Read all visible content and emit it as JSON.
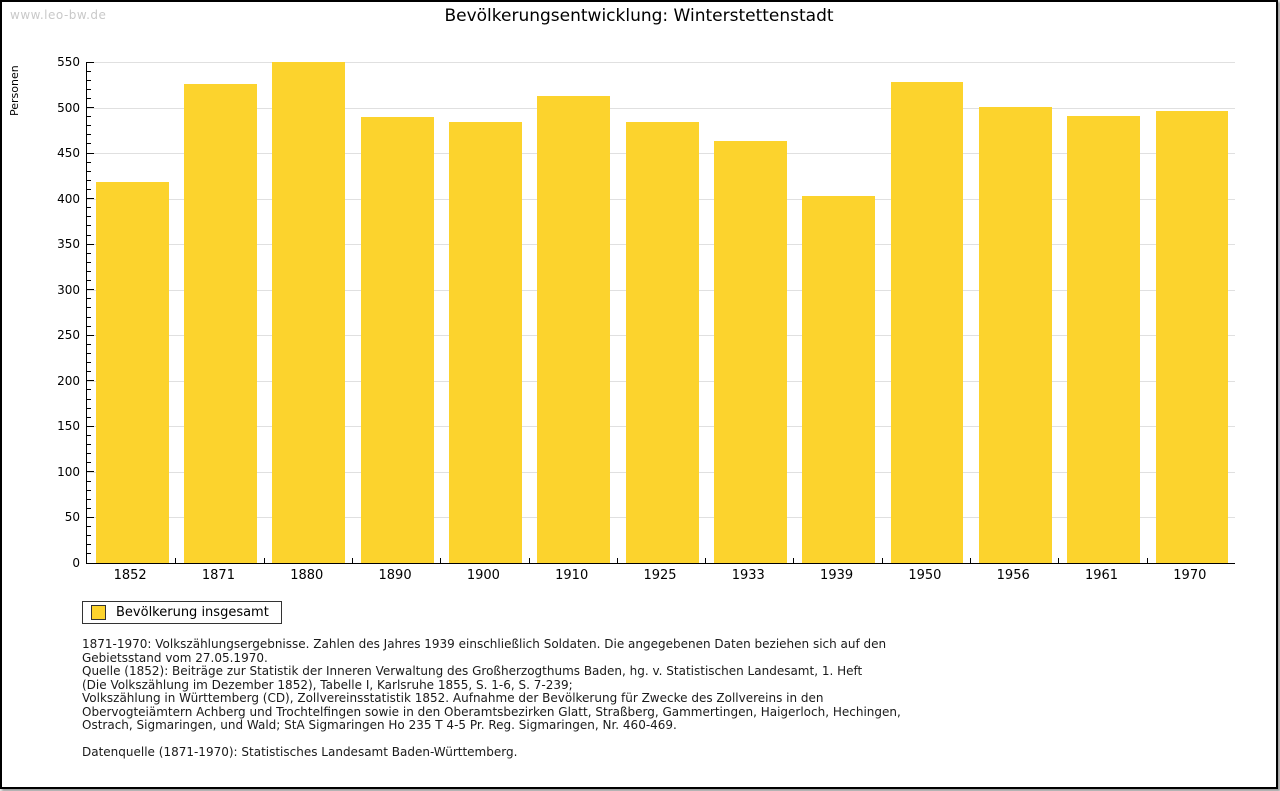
{
  "watermark": "www.leo-bw.de",
  "title": "Bevölkerungsentwicklung: Winterstettenstadt",
  "chart_data": {
    "type": "bar",
    "title": "Bevölkerungsentwicklung: Winterstettenstadt",
    "ylabel": "Personen",
    "xlabel": "",
    "categories": [
      "1852",
      "1871",
      "1880",
      "1890",
      "1900",
      "1910",
      "1925",
      "1933",
      "1939",
      "1950",
      "1956",
      "1961",
      "1970"
    ],
    "series": [
      {
        "name": "Bevölkerung insgesamt",
        "values": [
          418,
          526,
          550,
          490,
          484,
          513,
          484,
          463,
          403,
          528,
          501,
          491,
          496
        ]
      }
    ],
    "ylim": [
      0,
      550
    ],
    "ytick_step": 50,
    "yminor_step": 10,
    "grid": "horizontal",
    "bar_color": "#FCD32D",
    "gridline_color": "#e0e0e0",
    "legend_position": "bottom-left"
  },
  "legend": {
    "label": "Bevölkerung insgesamt"
  },
  "footer": {
    "lines": [
      "1871-1970: Volkszählungsergebnisse. Zahlen des Jahres 1939 einschließlich Soldaten. Die angegebenen Daten beziehen sich auf den",
      "Gebietsstand vom 27.05.1970.",
      "Quelle (1852): Beiträge zur Statistik der Inneren Verwaltung des Großherzogthums Baden, hg. v. Statistischen Landesamt, 1. Heft",
      "(Die Volkszählung im Dezember 1852), Tabelle I, Karlsruhe 1855, S. 1-6, S. 7-239;",
      "Volkszählung in Württemberg (CD), Zollvereinsstatistik 1852. Aufnahme der Bevölkerung für Zwecke des Zollvereins in den",
      "Obervogteiämtern Achberg und Trochtelfingen sowie in den Oberamtsbezirken Glatt, Straßberg, Gammertingen, Haigerloch, Hechingen,",
      "Ostrach, Sigmaringen, und Wald; StA Sigmaringen Ho 235 T 4-5 Pr. Reg. Sigmaringen, Nr. 460-469.",
      "",
      "Datenquelle (1871-1970): Statistisches Landesamt Baden-Württemberg."
    ]
  }
}
